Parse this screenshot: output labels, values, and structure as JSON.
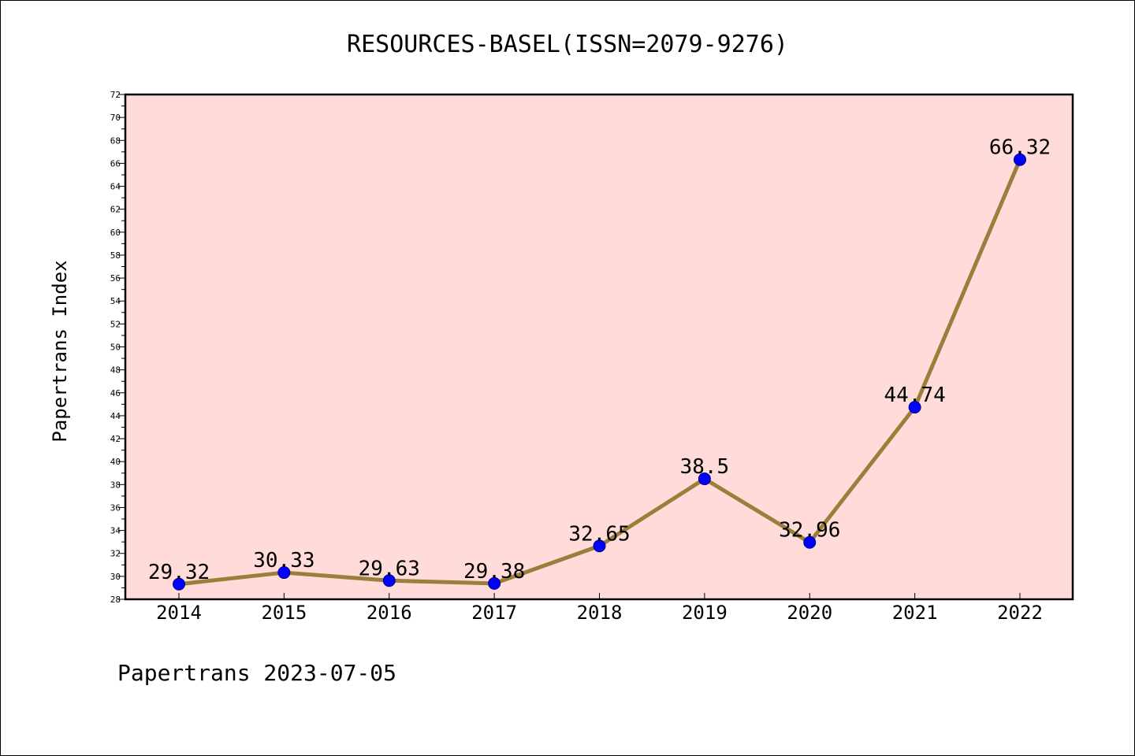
{
  "chart_data": {
    "type": "line",
    "title": "RESOURCES-BASEL(ISSN=2079-9276)",
    "xlabel": "",
    "ylabel": "Papertrans Index",
    "categories": [
      "2014",
      "2015",
      "2016",
      "2017",
      "2018",
      "2019",
      "2020",
      "2021",
      "2022"
    ],
    "values": [
      29.32,
      30.33,
      29.63,
      29.38,
      32.65,
      38.5,
      32.96,
      44.74,
      66.32
    ],
    "data_labels": [
      "29.32",
      "30.33",
      "29.63",
      "29.38",
      "32.65",
      "38.5",
      "32.96",
      "44.74",
      "66.32"
    ],
    "ylim": [
      28,
      72
    ],
    "y_tick_step": 2,
    "grid": false,
    "colors": {
      "plot_background": "#ffdcda",
      "line": "#9a7f3c",
      "marker": "#0000ff"
    }
  },
  "footer": {
    "text": "Papertrans 2023-07-05"
  }
}
